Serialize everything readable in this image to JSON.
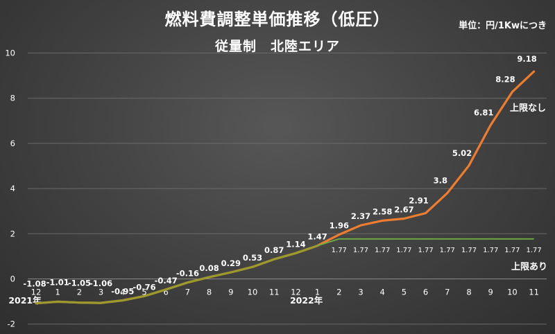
{
  "chart_data": {
    "type": "line",
    "title": "燃料費調整単価推移（低圧）",
    "subtitle": "従量制　北陸エリア",
    "unit_note": "単位：円/1Kwにつき",
    "categories": [
      "12",
      "1",
      "2",
      "3",
      "4",
      "5",
      "6",
      "7",
      "8",
      "9",
      "10",
      "11",
      "12",
      "1",
      "2",
      "3",
      "4",
      "5",
      "6",
      "7",
      "8",
      "9",
      "10",
      "11"
    ],
    "year_labels": [
      {
        "label": "2021年",
        "category_index": 0
      },
      {
        "label": "2022年",
        "category_index": 13
      }
    ],
    "ylim": [
      -2,
      10
    ],
    "yticks": [
      -2,
      0,
      2,
      4,
      6,
      8,
      10
    ],
    "grid": true,
    "series": [
      {
        "name": "上限なし",
        "color": "#ed7d31",
        "values": [
          -1.08,
          -1.01,
          -1.05,
          -1.06,
          -0.95,
          -0.76,
          -0.47,
          -0.16,
          0.08,
          0.29,
          0.53,
          0.87,
          1.14,
          1.47,
          1.96,
          2.37,
          2.58,
          2.67,
          2.91,
          3.8,
          5.02,
          6.81,
          8.28,
          9.18
        ],
        "data_labels": [
          "-1.08",
          "-1.01",
          "-1.05",
          "-1.06",
          "-0.95",
          "-0.76",
          "-0.47",
          "-0.16",
          "0.08",
          "0.29",
          "0.53",
          "0.87",
          "1.14",
          "1.47",
          "1.96",
          "2.37",
          "2.58",
          "2.67",
          "2.91",
          "3.8",
          "5.02",
          "6.81",
          "8.28",
          "9.18"
        ]
      },
      {
        "name": "上限あり",
        "color": "#70ad47",
        "values": [
          -1.08,
          -1.01,
          -1.05,
          -1.06,
          -0.95,
          -0.76,
          -0.47,
          -0.16,
          0.08,
          0.29,
          0.53,
          0.87,
          1.14,
          1.47,
          1.77,
          1.77,
          1.77,
          1.77,
          1.77,
          1.77,
          1.77,
          1.77,
          1.77,
          1.77
        ],
        "data_labels": [
          "",
          "",
          "",
          "",
          "",
          "",
          "",
          "",
          "",
          "",
          "",
          "",
          "",
          "",
          "1.77",
          "1.77",
          "1.77",
          "1.77",
          "1.77",
          "1.77",
          "1.77",
          "1.77",
          "1.77",
          "1.77"
        ]
      }
    ]
  }
}
